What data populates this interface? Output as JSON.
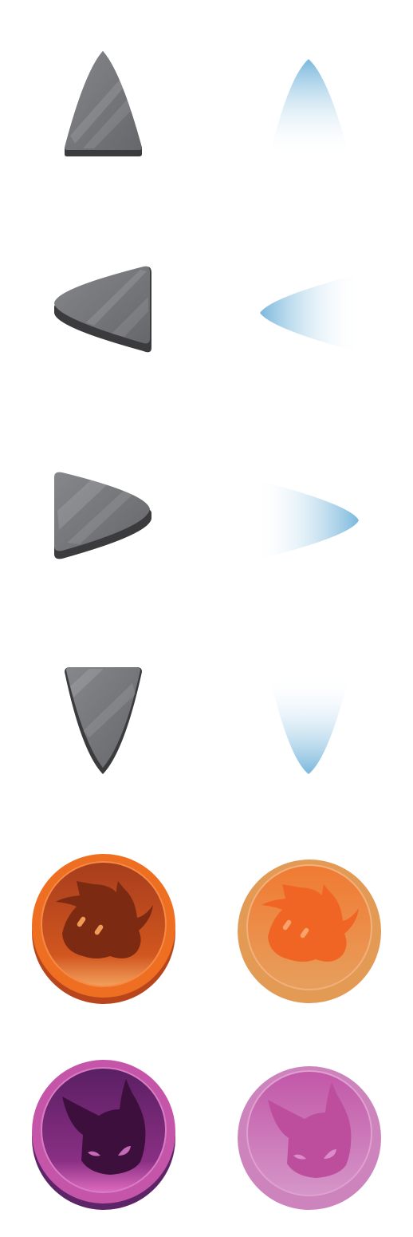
{
  "sheet": {
    "background": "#ffffff",
    "arrow_sprites": [
      {
        "name": "arrow-up-normal",
        "direction": "up",
        "state": "normal"
      },
      {
        "name": "arrow-up-glow",
        "direction": "up",
        "state": "glow"
      },
      {
        "name": "arrow-left-normal",
        "direction": "left",
        "state": "normal"
      },
      {
        "name": "arrow-left-glow",
        "direction": "left",
        "state": "glow"
      },
      {
        "name": "arrow-right-normal",
        "direction": "right",
        "state": "normal"
      },
      {
        "name": "arrow-right-glow",
        "direction": "right",
        "state": "glow"
      },
      {
        "name": "arrow-down-normal",
        "direction": "down",
        "state": "normal"
      },
      {
        "name": "arrow-down-glow",
        "direction": "down",
        "state": "glow"
      }
    ],
    "buttons": [
      {
        "name": "orange-creature-button-normal",
        "icon": "spiky-creature-icon",
        "state": "normal"
      },
      {
        "name": "orange-creature-button-pressed",
        "icon": "spiky-creature-icon",
        "state": "pressed"
      },
      {
        "name": "purple-demon-button-normal",
        "icon": "horned-demon-icon",
        "state": "normal"
      },
      {
        "name": "purple-demon-button-pressed",
        "icon": "horned-demon-icon",
        "state": "pressed"
      }
    ],
    "colors": {
      "arrow_gray": "#6f7073",
      "arrow_gray_light": "#85868a",
      "arrow_edge": "#3a3a3c",
      "glow_blue": "#7ab8dc",
      "orange_rim": "#ef6f23",
      "orange_dark": "#b64a1f",
      "orange_silhouette": "#7c2b12",
      "orange_pressed": "#e39a55",
      "purple_rim": "#c455a8",
      "purple_dark": "#5e2468",
      "purple_silhouette": "#3d0f3d",
      "purple_pressed": "#cd84bd"
    }
  }
}
